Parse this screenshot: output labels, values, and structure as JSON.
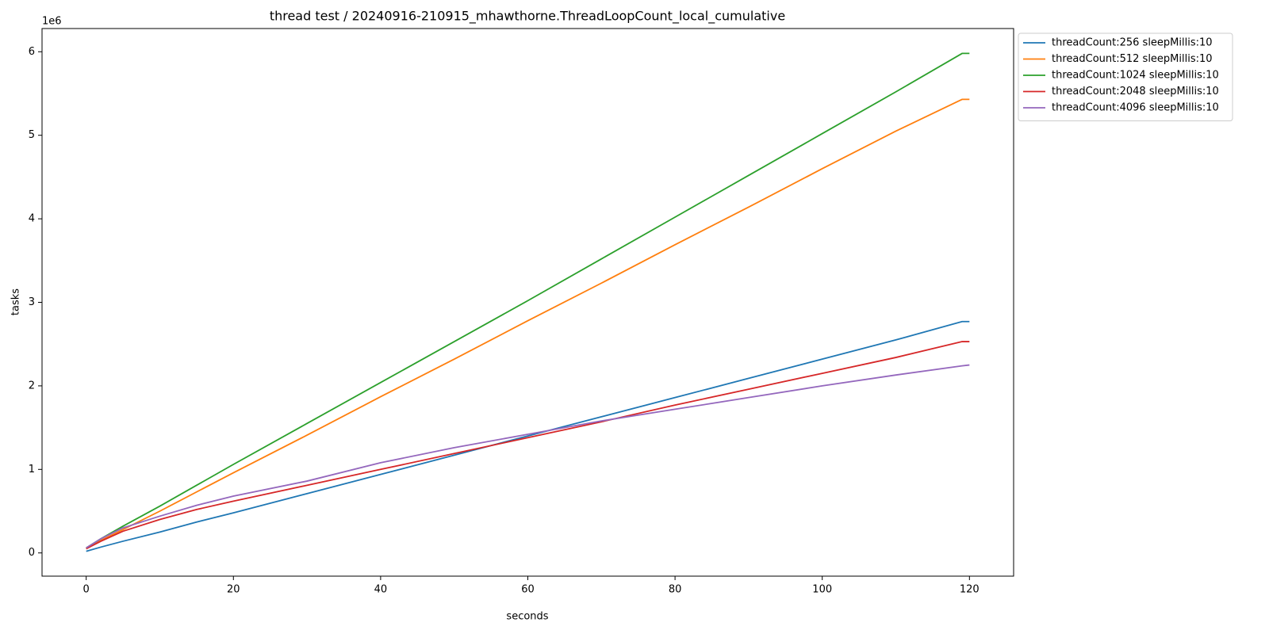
{
  "chart_data": {
    "type": "line",
    "title": "thread test / 20240916-210915_mhawthorne.ThreadLoopCount_local_cumulative",
    "x_label": "seconds",
    "y_label": "tasks",
    "y_offset_label": "1e6",
    "legend": "outside-upper-right",
    "x": [
      0,
      2,
      5,
      10,
      15,
      20,
      30,
      40,
      50,
      60,
      70,
      80,
      90,
      100,
      110,
      119,
      120
    ],
    "series": [
      {
        "name": "threadCount:256 sleepMillis:10",
        "color": "#1f77b4",
        "values": [
          20000,
          70000,
          140000,
          250000,
          370000,
          480000,
          710000,
          940000,
          1170000,
          1400000,
          1630000,
          1860000,
          2090000,
          2320000,
          2550000,
          2770000,
          2770000
        ]
      },
      {
        "name": "threadCount:512 sleepMillis:10",
        "color": "#ff7f0e",
        "values": [
          50000,
          150000,
          280000,
          500000,
          730000,
          960000,
          1410000,
          1870000,
          2320000,
          2780000,
          3230000,
          3690000,
          4140000,
          4600000,
          5050000,
          5430000,
          5430000
        ]
      },
      {
        "name": "threadCount:1024 sleepMillis:10",
        "color": "#2ca02c",
        "values": [
          60000,
          170000,
          320000,
          560000,
          810000,
          1060000,
          1550000,
          2040000,
          2530000,
          3020000,
          3520000,
          4020000,
          4520000,
          5020000,
          5520000,
          5980000,
          5980000
        ]
      },
      {
        "name": "threadCount:2048 sleepMillis:10",
        "color": "#d62728",
        "values": [
          50000,
          140000,
          260000,
          400000,
          520000,
          620000,
          810000,
          1000000,
          1190000,
          1380000,
          1570000,
          1770000,
          1960000,
          2150000,
          2340000,
          2530000,
          2530000
        ]
      },
      {
        "name": "threadCount:4096 sleepMillis:10",
        "color": "#9467bd",
        "values": [
          60000,
          170000,
          300000,
          440000,
          570000,
          680000,
          860000,
          1080000,
          1260000,
          1420000,
          1580000,
          1720000,
          1860000,
          2000000,
          2130000,
          2240000,
          2250000
        ]
      }
    ],
    "xlim": [
      -6,
      126
    ],
    "xticks": [
      0,
      20,
      40,
      60,
      80,
      100,
      120
    ],
    "ylim": [
      -278000,
      6278000
    ],
    "yticks": [
      {
        "value": 0,
        "label": "0"
      },
      {
        "value": 1000000,
        "label": "1"
      },
      {
        "value": 2000000,
        "label": "2"
      },
      {
        "value": 3000000,
        "label": "3"
      },
      {
        "value": 4000000,
        "label": "4"
      },
      {
        "value": 5000000,
        "label": "5"
      },
      {
        "value": 6000000,
        "label": "6"
      }
    ]
  }
}
